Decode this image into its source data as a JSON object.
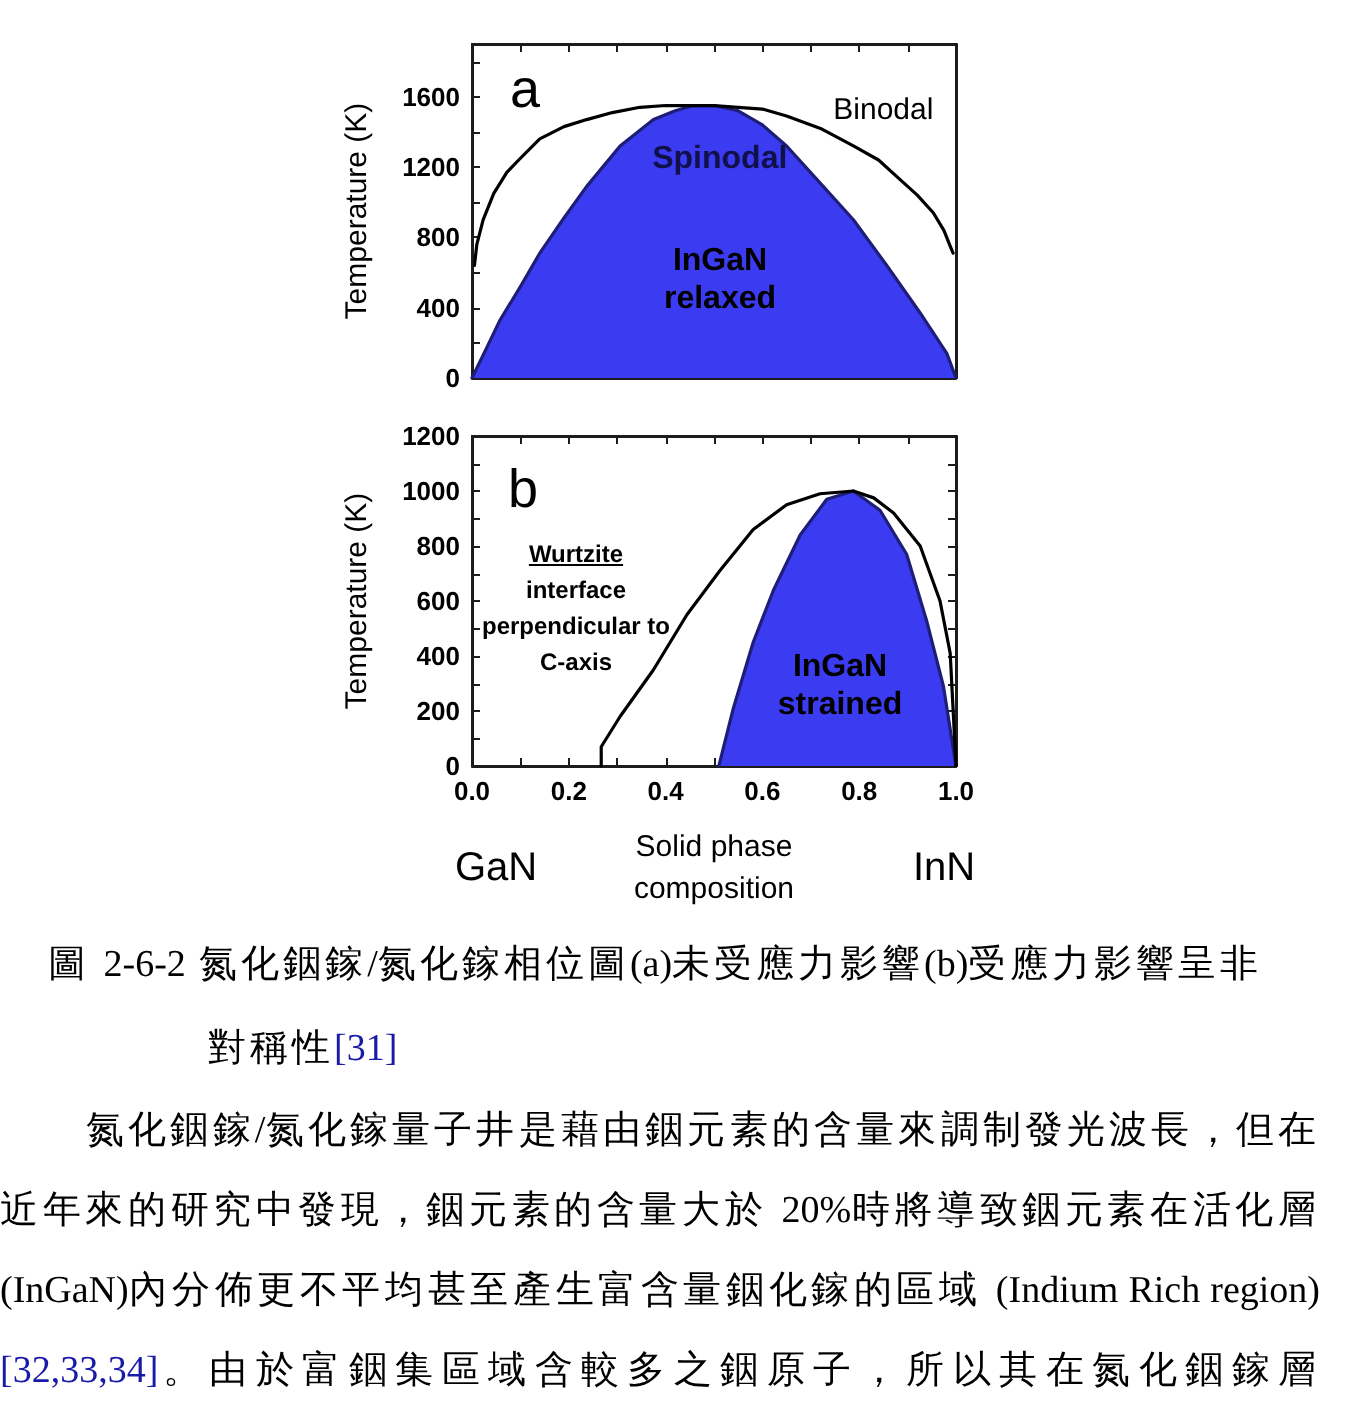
{
  "chart_data": [
    {
      "type": "area",
      "title": "a",
      "ylabel": "Temperature (K)",
      "xlim": [
        0,
        1
      ],
      "ylim": [
        0,
        1900
      ],
      "xticks": [
        {
          "value": 0,
          "label": null
        },
        {
          "value": 0.1,
          "label": null
        },
        {
          "value": 0.2,
          "label": null
        },
        {
          "value": 0.3,
          "label": null
        },
        {
          "value": 0.4,
          "label": null
        },
        {
          "value": 0.5,
          "label": null
        },
        {
          "value": 0.6,
          "label": null
        },
        {
          "value": 0.7,
          "label": null
        },
        {
          "value": 0.8,
          "label": null
        },
        {
          "value": 0.9,
          "label": null
        },
        {
          "value": 1,
          "label": null
        }
      ],
      "yticks": [
        0,
        {
          "value": 200,
          "label": null
        },
        400,
        {
          "value": 600,
          "label": null
        },
        800,
        {
          "value": 1000,
          "label": null
        },
        1200,
        {
          "value": 1400,
          "label": null
        },
        1600,
        {
          "value": 1800,
          "label": null
        }
      ],
      "tick_labels": "y",
      "marker": "none",
      "series": [
        {
          "name": "Binodal",
          "type": "line",
          "color": "#000000",
          "x": [
            0.005,
            0.01,
            0.023,
            0.045,
            0.072,
            0.1,
            0.14,
            0.19,
            0.237,
            0.29,
            0.347,
            0.4,
            0.45,
            0.5,
            0.55,
            0.6,
            0.65,
            0.72,
            0.788,
            0.84,
            0.884,
            0.92,
            0.953,
            0.975,
            0.988,
            0.994
          ],
          "values": [
            640,
            760,
            900,
            1050,
            1170,
            1250,
            1360,
            1430,
            1470,
            1510,
            1540,
            1550,
            1550,
            1550,
            1540,
            1530,
            1490,
            1420,
            1320,
            1240,
            1130,
            1040,
            940,
            840,
            750,
            710
          ]
        },
        {
          "name": "Spinodal",
          "type": "area",
          "color": "#3b3bf2",
          "x": [
            0,
            0.03,
            0.058,
            0.1,
            0.14,
            0.19,
            0.237,
            0.306,
            0.375,
            0.42,
            0.457,
            0.5,
            0.55,
            0.6,
            0.65,
            0.719,
            0.788,
            0.857,
            0.926,
            0.981,
            1
          ],
          "values": [
            0,
            170,
            330,
            520,
            710,
            910,
            1090,
            1320,
            1470,
            1520,
            1550,
            1550,
            1520,
            1440,
            1320,
            1110,
            900,
            640,
            370,
            140,
            0
          ]
        }
      ],
      "annotations": [
        "InGaN relaxed"
      ]
    },
    {
      "type": "area",
      "title": "b",
      "xlabel": "Solid phase composition",
      "ylabel": "Temperature (K)",
      "xlim": [
        0,
        1
      ],
      "ylim": [
        0,
        1200
      ],
      "xticks": [
        {
          "value": 0,
          "label": "0.0"
        },
        {
          "value": 0.1,
          "label": null
        },
        {
          "value": 0.2,
          "label": "0.2"
        },
        {
          "value": 0.3,
          "label": null
        },
        {
          "value": 0.4,
          "label": "0.4"
        },
        {
          "value": 0.5,
          "label": null
        },
        {
          "value": 0.6,
          "label": "0.6"
        },
        {
          "value": 0.7,
          "label": null
        },
        {
          "value": 0.8,
          "label": "0.8"
        },
        {
          "value": 0.9,
          "label": null
        },
        {
          "value": 1,
          "label": "1.0"
        }
      ],
      "yticks": [
        0,
        {
          "value": 100,
          "label": null
        },
        200,
        {
          "value": 300,
          "label": null
        },
        400,
        {
          "value": 500,
          "label": null
        },
        600,
        {
          "value": 700,
          "label": null
        },
        800,
        {
          "value": 900,
          "label": null
        },
        1000,
        {
          "value": 1100,
          "label": null
        },
        1200
      ],
      "marker": "none",
      "series": [
        {
          "type": "line",
          "color": "#000000",
          "x": [
            0.267,
            0.267,
            0.306,
            0.375,
            0.444,
            0.512,
            0.581,
            0.65,
            0.719,
            0.788,
            0.83,
            0.871,
            0.926,
            0.967,
            0.988,
            1
          ],
          "values": [
            0,
            70,
            180,
            350,
            550,
            710,
            860,
            950,
            990,
            1000,
            975,
            920,
            800,
            600,
            410,
            0
          ]
        },
        {
          "type": "area",
          "color": "#3b3bf2",
          "x": [
            0.51,
            0.54,
            0.581,
            0.623,
            0.678,
            0.733,
            0.788,
            0.843,
            0.898,
            0.939,
            0.974,
            1
          ],
          "values": [
            0,
            210,
            450,
            640,
            840,
            970,
            1000,
            930,
            770,
            530,
            290,
            0
          ]
        }
      ],
      "annotations": [
        "Wurtzite interface perpendicular to C-axis",
        "InGaN strained",
        "GaN",
        "InN"
      ]
    },
    {
      "type": "other",
      "annotations": [
        "圖 2-6-2 氮化銦鎵/氮化鎵相位圖(a)未受應力影響(b)受應力影響呈非對稱性[31]",
        "氮化銦鎵/氮化鎵量子井是藉由銦元素的含量來調制發光波長，但在近年來的研究中發現，銦元素的含量大於 20%時將導致銦元素在活化層(InGaN)內分佈更不平均甚至產生富含量銦化鎵的區域 (Indium Rich region)[32,33,34]。由於富銦集區域含較多之銦原子，所以其在氮化銦鎵層"
      ]
    }
  ]
}
